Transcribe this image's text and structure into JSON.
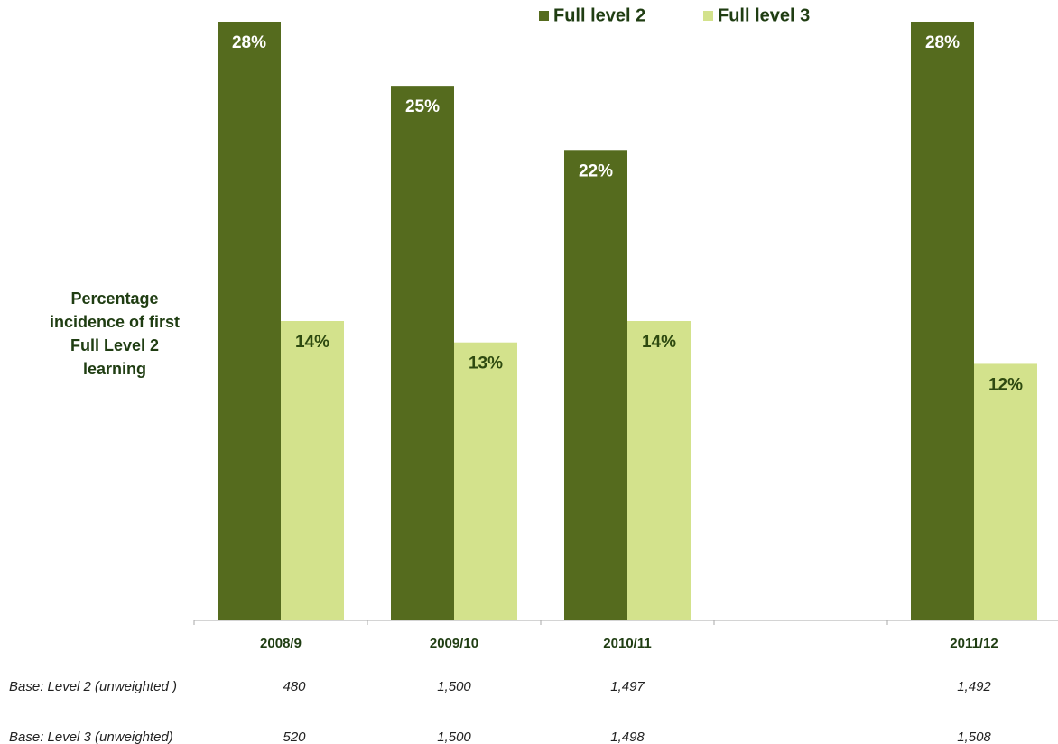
{
  "chart_data": {
    "type": "bar",
    "ylabel": "Percentage incidence of first Full Level 2 learning",
    "categories": [
      "2008/9",
      "2009/10",
      "2010/11",
      null,
      "2011/12"
    ],
    "series": [
      {
        "name": "Full level 2",
        "color": "#556b1e",
        "values": [
          28,
          25,
          22,
          null,
          28
        ],
        "value_labels": [
          "28%",
          "25%",
          "22%",
          null,
          "28%"
        ]
      },
      {
        "name": "Full level 3",
        "color": "#d3e28c",
        "values": [
          14,
          13,
          14,
          null,
          12
        ],
        "value_labels": [
          "14%",
          "13%",
          "14%",
          null,
          "12%"
        ]
      }
    ],
    "legend": "top",
    "base_rows": [
      {
        "label": "Base: Level 2 (unweighted )",
        "values": [
          "480",
          "1,500",
          "1,497",
          null,
          "1,492"
        ]
      },
      {
        "label": "Base: Level 3 (unweighted)",
        "values": [
          "520",
          "1,500",
          "1,498",
          null,
          "1,508"
        ]
      }
    ]
  }
}
